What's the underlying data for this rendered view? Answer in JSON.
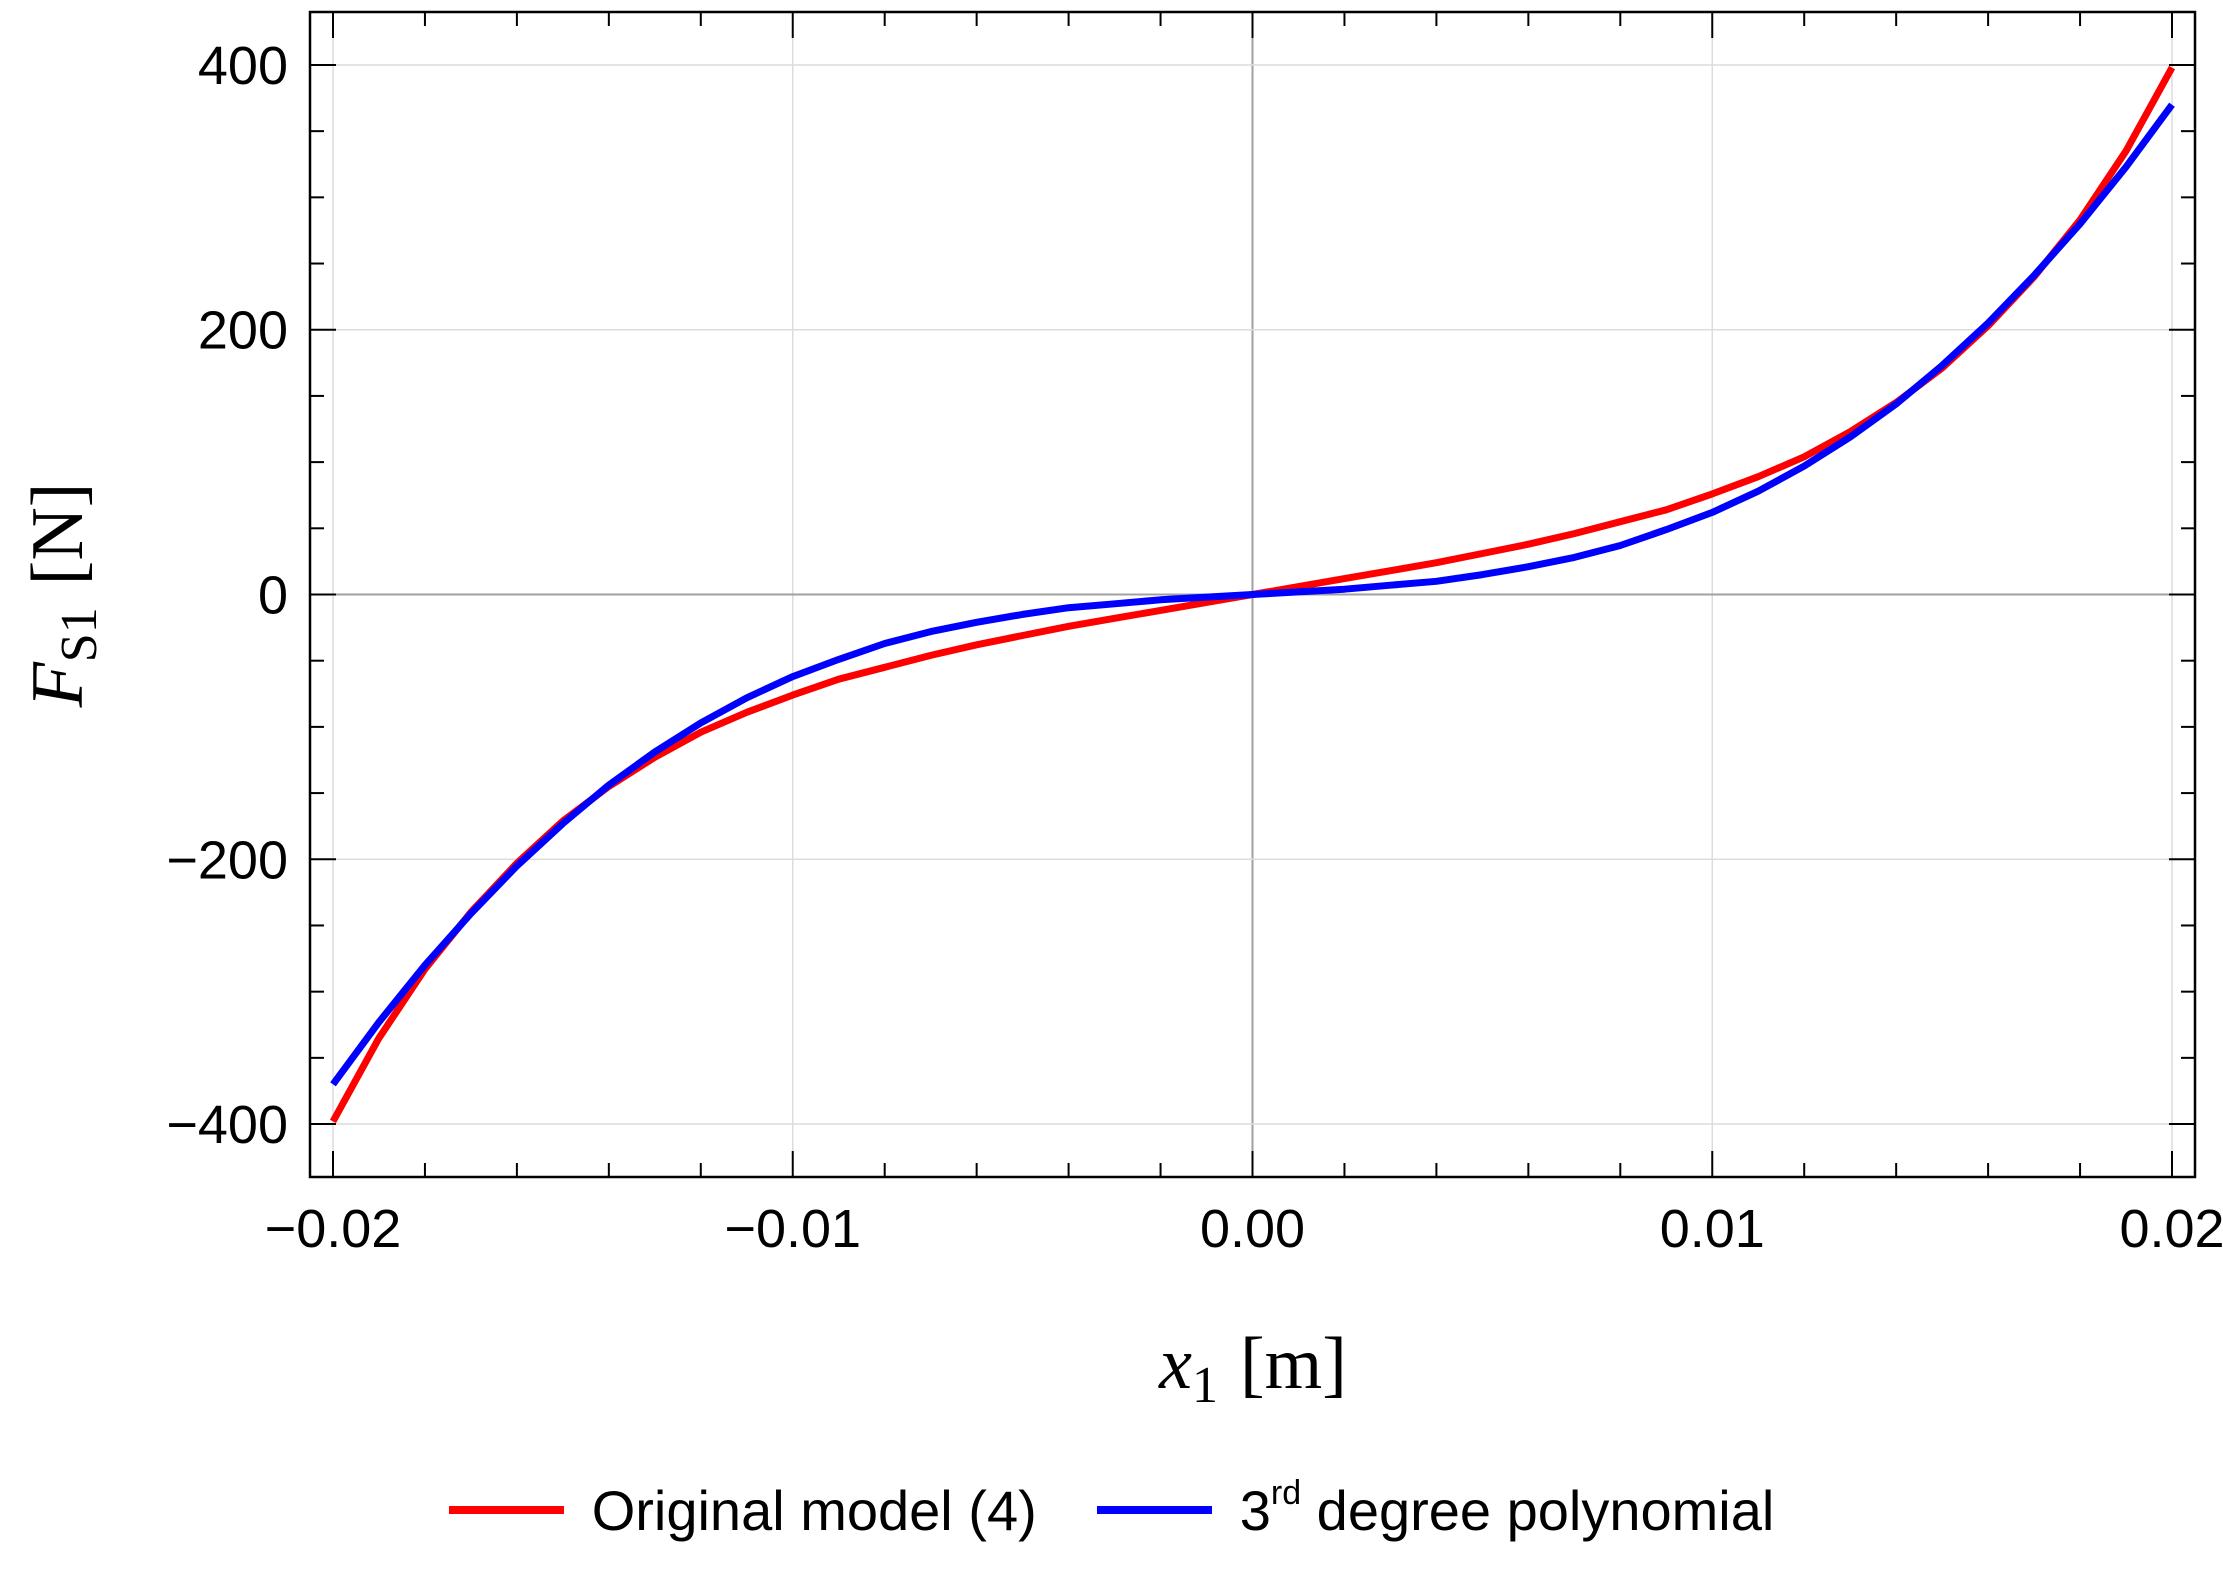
{
  "chart_data": {
    "type": "line",
    "xlabel": {
      "main": "x",
      "sub": "1",
      "unit": "[m]"
    },
    "ylabel": {
      "main": "F",
      "sub": "S1",
      "unit": "[N]"
    },
    "xlim": [
      -0.0205,
      0.0205
    ],
    "ylim": [
      -440,
      440
    ],
    "x_ticks": [
      {
        "value": -0.02,
        "label": "−0.02"
      },
      {
        "value": -0.01,
        "label": "−0.01"
      },
      {
        "value": 0.0,
        "label": "0.00"
      },
      {
        "value": 0.01,
        "label": "0.01"
      },
      {
        "value": 0.02,
        "label": "0.02"
      }
    ],
    "y_ticks": [
      {
        "value": -400,
        "label": "−400"
      },
      {
        "value": -200,
        "label": "−200"
      },
      {
        "value": 0,
        "label": "0"
      },
      {
        "value": 200,
        "label": "200"
      },
      {
        "value": 400,
        "label": "400"
      }
    ],
    "grid": true,
    "legend_position": "bottom-center",
    "series": [
      {
        "name": "Original model (4)",
        "color": "#ff0000",
        "x": [
          -0.02,
          -0.019,
          -0.018,
          -0.017,
          -0.016,
          -0.015,
          -0.014,
          -0.013,
          -0.012,
          -0.011,
          -0.01,
          -0.009,
          -0.008,
          -0.007,
          -0.006,
          -0.005,
          -0.004,
          -0.003,
          -0.002,
          -0.001,
          0.0,
          0.001,
          0.002,
          0.003,
          0.004,
          0.005,
          0.006,
          0.007,
          0.008,
          0.009,
          0.01,
          0.011,
          0.012,
          0.013,
          0.014,
          0.015,
          0.016,
          0.017,
          0.018,
          0.019,
          0.02
        ],
        "y": [
          -398,
          -335,
          -283,
          -240,
          -203,
          -171,
          -145,
          -123,
          -104,
          -89,
          -76,
          -64,
          -55,
          -46,
          -38,
          -31,
          -24,
          -18,
          -12,
          -6,
          0,
          6,
          12,
          18,
          24,
          31,
          38,
          46,
          55,
          64,
          76,
          89,
          104,
          123,
          145,
          171,
          203,
          240,
          283,
          335,
          398
        ]
      },
      {
        "name": "3rd degree polynomial",
        "name_base": "3",
        "name_sup": "rd",
        "name_rest": " degree polynomial",
        "color": "#0000ff",
        "x": [
          -0.02,
          -0.019,
          -0.018,
          -0.017,
          -0.016,
          -0.015,
          -0.014,
          -0.013,
          -0.012,
          -0.011,
          -0.01,
          -0.009,
          -0.008,
          -0.007,
          -0.006,
          -0.005,
          -0.004,
          -0.003,
          -0.002,
          -0.001,
          0.0,
          0.001,
          0.002,
          0.003,
          0.004,
          0.005,
          0.006,
          0.007,
          0.008,
          0.009,
          0.01,
          0.011,
          0.012,
          0.013,
          0.014,
          0.015,
          0.016,
          0.017,
          0.018,
          0.019,
          0.02
        ],
        "y": [
          -370,
          -323,
          -280,
          -241,
          -205,
          -173,
          -144,
          -119,
          -97,
          -78,
          -62,
          -49,
          -37,
          -28,
          -21,
          -15,
          -10,
          -7,
          -4,
          -2,
          0,
          2,
          4,
          7,
          10,
          15,
          21,
          28,
          37,
          49,
          62,
          78,
          97,
          119,
          144,
          173,
          205,
          241,
          280,
          323,
          370
        ]
      }
    ]
  }
}
